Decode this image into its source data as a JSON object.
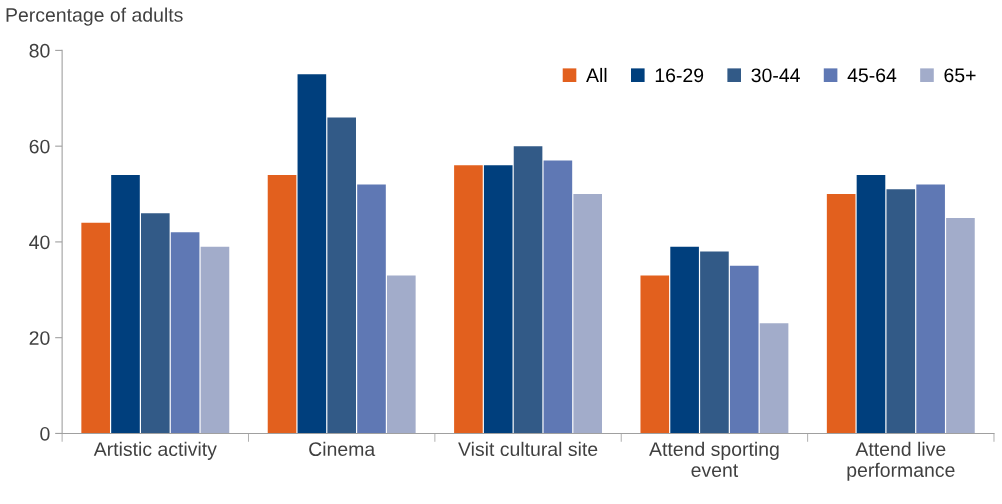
{
  "chart_data": {
    "type": "bar",
    "ylabel": "Percentage of adults",
    "categories": [
      "Artistic activity",
      "Cinema",
      "Visit cultural site",
      "Attend sporting event",
      "Attend live performance"
    ],
    "series": [
      {
        "name": "All",
        "color": "#e2601e",
        "values": [
          44,
          54,
          56,
          33,
          50
        ]
      },
      {
        "name": "16-29",
        "color": "#003f7d",
        "values": [
          54,
          75,
          56,
          39,
          54
        ]
      },
      {
        "name": "30-44",
        "color": "#325a87",
        "values": [
          46,
          66,
          60,
          38,
          51
        ]
      },
      {
        "name": "45-64",
        "color": "#5f78b4",
        "values": [
          42,
          52,
          57,
          35,
          52
        ]
      },
      {
        "name": "65+",
        "color": "#a2acca",
        "values": [
          39,
          33,
          50,
          23,
          45
        ]
      }
    ],
    "ylim": [
      0,
      80
    ],
    "yticks": [
      0,
      20,
      40,
      60,
      80
    ],
    "grid": false,
    "legend": "top right"
  }
}
